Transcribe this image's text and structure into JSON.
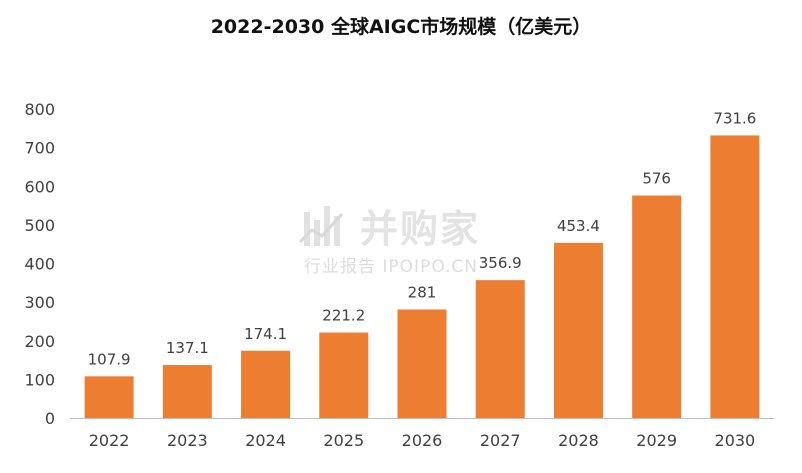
{
  "chart_data": {
    "type": "bar",
    "title": "2022-2030 全球AIGC市场规模（亿美元）",
    "categories": [
      "2022",
      "2023",
      "2024",
      "2025",
      "2026",
      "2027",
      "2028",
      "2029",
      "2030"
    ],
    "values": [
      107.9,
      137.1,
      174.1,
      221.2,
      281,
      356.9,
      453.4,
      576,
      731.6
    ],
    "value_labels": [
      "107.9",
      "137.1",
      "174.1",
      "221.2",
      "281",
      "356.9",
      "453.4",
      "576",
      "731.6"
    ],
    "ylim": [
      0,
      800
    ],
    "yticks": [
      0,
      100,
      200,
      300,
      400,
      500,
      600,
      700,
      800
    ],
    "grid": false,
    "legend": "none",
    "bar_color": "#ED7D31",
    "axis_color": "#BFBFBF",
    "label_color": "#404040"
  },
  "watermark": {
    "main": "并购家",
    "sub": "行业报告 IPOIPO.CN"
  }
}
